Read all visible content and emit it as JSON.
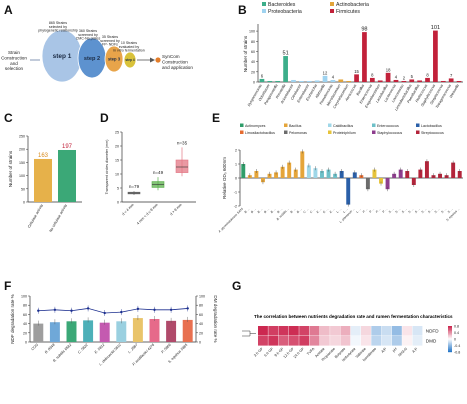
{
  "panels": {
    "A": {
      "letter": "A",
      "steps": [
        {
          "label": "step 1",
          "fill": "#a9c5e6",
          "note": "865 Strains\nselected by\nphylogenetic relationship"
        },
        {
          "label": "step 2",
          "fill": "#5d92cf",
          "note": "360 Strains\nscreened by\nCMC-Na plates"
        },
        {
          "label": "step 3",
          "fill": "#e8a44a",
          "note": "35 Strains\nscreened by\nFP- NDFs"
        },
        {
          "label": "step 4",
          "fill": "#d9c23a",
          "note": "10 Strains\nevaluated by\nin vitro fermentation"
        }
      ],
      "left_text": "Strain\nConstruction\nand\nselection",
      "right_text": "SynCom\nConstruction\nand application"
    },
    "B": {
      "letter": "B",
      "legend": [
        {
          "label": "Bacteroides",
          "color": "#3cae8a"
        },
        {
          "label": "Proteobacteria",
          "color": "#9fd3f0"
        },
        {
          "label": "Actinobacteria",
          "color": "#e2a43a"
        },
        {
          "label": "Firmicutes",
          "color": "#c2213a"
        }
      ]
    },
    "C": {
      "letter": "C",
      "color_a": "#e6b14a",
      "color_b": "#3ba877"
    },
    "D": {
      "letter": "D",
      "colors": [
        "#6d6d6d",
        "#59b04a",
        "#e37784"
      ]
    },
    "E": {
      "letter": "E",
      "legend": [
        {
          "label": "Actinomyces",
          "color": "#2f9d6a"
        },
        {
          "label": "Bacillus",
          "color": "#e5a53a"
        },
        {
          "label": "Caldibacillus",
          "color": "#9fd7e8"
        },
        {
          "label": "Enterococcus",
          "color": "#6ec0c8"
        },
        {
          "label": "Lactobacillus",
          "color": "#2a5fa8"
        },
        {
          "label": "Limosilactobacillus",
          "color": "#e56b30"
        },
        {
          "label": "Pelomonas",
          "color": "#6c6c6c"
        },
        {
          "label": "Proteiniphilum",
          "color": "#e6c33a"
        },
        {
          "label": "Staphylococcus",
          "color": "#8e3d8e"
        },
        {
          "label": "Streptococcus",
          "color": "#b3243a"
        }
      ]
    },
    "F": {
      "letter": "F",
      "line_color": "#1c2f8f",
      "bar_colors": [
        "#9e9e9e",
        "#6fa8d8",
        "#3ba877",
        "#4db0b8",
        "#c45ab0",
        "#9ad0e0",
        "#e9c46a",
        "#e66a8a",
        "#b04a6a",
        "#e87050"
      ]
    },
    "G": {
      "letter": "G",
      "title": "The correlation between nutrients degradation rate and rumen fermentation characteristics",
      "row_labels": [
        "NDFD",
        "DMD"
      ],
      "col_labels": [
        "3 h GP",
        "6 h GP",
        "9 h GP",
        "12 h GP",
        "24 h GP",
        "TVFA",
        "Acetate",
        "Propionate",
        "Butyrate",
        "Isobutyrate",
        "Valerate",
        "Isovalerate",
        "A/P",
        "pH",
        "NH3-N",
        "A:P"
      ],
      "values": [
        [
          0.8,
          0.72,
          0.75,
          0.78,
          0.7,
          0.5,
          0.25,
          0.2,
          0.3,
          -0.1,
          0.15,
          -0.3,
          -0.2,
          -0.4,
          0.1,
          -0.15
        ],
        [
          0.7,
          0.75,
          0.6,
          0.65,
          0.72,
          0.45,
          0.2,
          0.15,
          0.22,
          -0.05,
          0.1,
          -0.25,
          -0.15,
          -0.3,
          0.05,
          -0.1
        ]
      ],
      "scale_labels": [
        "0.8",
        "0.4",
        "0",
        "-0.4",
        "-0.8"
      ]
    }
  },
  "chart_data": [
    {
      "panel": "B",
      "type": "bar",
      "ylabel": "Number of strains",
      "ylim": [
        0,
        110
      ],
      "yticks": [
        0,
        20,
        40,
        60,
        80,
        100
      ],
      "categories": [
        "Dysgonomonas",
        "Odoribacter",
        "Paraprevotella",
        "Prevotella",
        "Acinetobacter",
        "Citrobacter",
        "Enterobacter",
        "Escherichia",
        "Klebsiella",
        "Pseudomonas",
        "Microbacterium",
        "Corynebacterium",
        "Aerococcus",
        "Bacillus",
        "Enterococcus",
        "Exiguobacterium",
        "Lactobacillus",
        "Lactococcus",
        "Leuconostoc",
        "Limosilactobacillus",
        "Paenibacillus",
        "Pediococcus",
        "Staphylococcus",
        "Streptococcus",
        "Tetragenococcus",
        "Weissella"
      ],
      "values": [
        6,
        2,
        2,
        51,
        4,
        2,
        2,
        3,
        12,
        4,
        5,
        2,
        15,
        98,
        8,
        3,
        18,
        4,
        2,
        5,
        3,
        8,
        101,
        2,
        7,
        2
      ],
      "value_labels": [
        "6",
        "",
        "",
        "51",
        "",
        "",
        "",
        "",
        "12",
        "4",
        "",
        "",
        "15",
        "98",
        "8",
        "",
        "18",
        "4",
        "2",
        "5",
        "",
        "8",
        "101",
        "",
        "7",
        ""
      ],
      "colors": [
        "#3cae8a",
        "#3cae8a",
        "#3cae8a",
        "#3cae8a",
        "#9fd3f0",
        "#9fd3f0",
        "#9fd3f0",
        "#9fd3f0",
        "#9fd3f0",
        "#9fd3f0",
        "#e2a43a",
        "#e2a43a",
        "#c2213a",
        "#c2213a",
        "#c2213a",
        "#c2213a",
        "#c2213a",
        "#c2213a",
        "#c2213a",
        "#c2213a",
        "#c2213a",
        "#c2213a",
        "#c2213a",
        "#c2213a",
        "#c2213a",
        "#c2213a"
      ]
    },
    {
      "panel": "C",
      "type": "bar",
      "ylabel": "Number of strains",
      "ylim": [
        0,
        250
      ],
      "yticks": [
        0,
        50,
        100,
        150,
        200,
        250
      ],
      "categories": [
        "Cellulase activity",
        "No cellulase activity"
      ],
      "values": [
        163,
        197
      ]
    },
    {
      "panel": "D",
      "type": "box",
      "ylabel": "Transparent circles diameter (mm)",
      "ylim": [
        0,
        25
      ],
      "yticks": [
        0,
        5,
        10,
        15,
        20,
        25
      ],
      "categories": [
        "d < 4 mm",
        "4 mm < d ≤ 9 mm",
        "d > 9 mm"
      ],
      "counts": [
        "n=79",
        "n=49",
        "n=35"
      ],
      "boxes": [
        {
          "min": 2.5,
          "q1": 2.9,
          "median": 3.2,
          "q3": 3.5,
          "max": 3.9
        },
        {
          "min": 4.2,
          "q1": 5.2,
          "median": 6.2,
          "q3": 7.3,
          "max": 8.9
        },
        {
          "min": 9.2,
          "q1": 10.5,
          "median": 12.5,
          "q3": 15.0,
          "max": 19.5
        }
      ]
    },
    {
      "panel": "E",
      "type": "bar",
      "ylabel": "Relative OD₀ 600nm",
      "ylim": [
        -2,
        2
      ],
      "yticks": [
        -2,
        -1,
        0,
        1,
        2
      ],
      "categories": [
        "A. glycerinitolerans SA25",
        "B. ...",
        "B. ...",
        "B. ...",
        "B. ...",
        "B. ...",
        "B. ...",
        "B. subtilis ...",
        "B. ...",
        "B. ...",
        "C. ...",
        "C. ...",
        "E. ...",
        "E. ...",
        "E. ...",
        "L. ...",
        "L. ...",
        "L. plantarum ...",
        "L. ...",
        "P. ...",
        "P. ...",
        "P. ...",
        "P. ...",
        "S. ...",
        "S. ...",
        "S. ...",
        "S. ...",
        "S. ...",
        "S. ...",
        "S. ...",
        "S. ...",
        "S. ...",
        "S. ...",
        "S. equinus ..."
      ],
      "values": [
        1.0,
        0.2,
        0.5,
        -0.3,
        0.3,
        0.4,
        0.8,
        1.1,
        0.6,
        1.9,
        0.9,
        0.7,
        0.5,
        0.6,
        0.3,
        0.5,
        -1.9,
        0.4,
        0.2,
        -0.8,
        0.6,
        -0.4,
        -0.8,
        0.3,
        0.6,
        0.5,
        -0.5,
        0.6,
        1.2,
        0.2,
        0.3,
        0.2,
        1.1,
        0.5
      ],
      "colors": [
        "#2f9d6a",
        "#e5a53a",
        "#e5a53a",
        "#e5a53a",
        "#e5a53a",
        "#e5a53a",
        "#e5a53a",
        "#e5a53a",
        "#e5a53a",
        "#e5a53a",
        "#9fd7e8",
        "#9fd7e8",
        "#6ec0c8",
        "#6ec0c8",
        "#6ec0c8",
        "#2a5fa8",
        "#2a5fa8",
        "#2a5fa8",
        "#e56b30",
        "#6c6c6c",
        "#e6c33a",
        "#e6c33a",
        "#8e3d8e",
        "#8e3d8e",
        "#8e3d8e",
        "#b3243a",
        "#b3243a",
        "#b3243a",
        "#b3243a",
        "#b3243a",
        "#b3243a",
        "#b3243a",
        "#b3243a",
        "#b3243a"
      ]
    },
    {
      "panel": "F",
      "type": "bar+line",
      "ylabel": "NDF degradation rate %",
      "y2label": "DM degradation rate %",
      "ylim": [
        0,
        100
      ],
      "yticks": [
        0,
        20,
        40,
        60,
        80,
        100
      ],
      "categories": [
        "CON",
        "B. 8348",
        "B. subtilis 6582",
        "C. 5822",
        "E. 5812",
        "L. debrueckii 5812",
        "L. 2987",
        "P. acidilactici 4276",
        "P. 5866",
        "S. equinus 5865"
      ],
      "bar_values": [
        40,
        43,
        45,
        47,
        42,
        45,
        52,
        50,
        46,
        48
      ],
      "line_values": [
        68,
        70,
        68,
        73,
        63,
        65,
        72,
        70,
        70,
        73
      ]
    }
  ]
}
